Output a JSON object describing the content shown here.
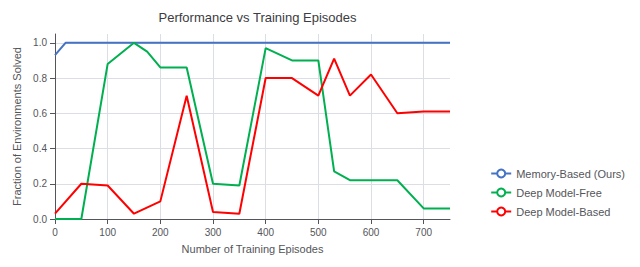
{
  "chart_data": {
    "type": "line",
    "title": "Performance vs Training Episodes",
    "xlabel": "Number of Training Episodes",
    "ylabel": "Fraction of Environments Solved",
    "xlim": [
      0,
      750
    ],
    "xticks": [
      0,
      100,
      200,
      300,
      400,
      500,
      600,
      700
    ],
    "ylim": [
      0.0,
      1.05
    ],
    "yticks": [
      {
        "value": 0.0,
        "label": "0.0"
      },
      0.2,
      0.4,
      0.6,
      0.8,
      {
        "value": 1.0,
        "label": "1.0"
      }
    ],
    "grid": true,
    "legend": "lower right",
    "series": [
      {
        "name": "Memory-Based (Ours)",
        "color": "#4472C4",
        "x": [
          0,
          20,
          750
        ],
        "values": [
          0.93,
          1.0,
          1.0
        ]
      },
      {
        "name": "Deep Model-Free",
        "color": "#00B050",
        "x": [
          0,
          50,
          100,
          150,
          175,
          200,
          250,
          300,
          350,
          400,
          450,
          500,
          530,
          560,
          600,
          650,
          700,
          750
        ],
        "values": [
          0.0,
          0.0,
          0.88,
          1.0,
          0.95,
          0.86,
          0.86,
          0.2,
          0.19,
          0.97,
          0.9,
          0.9,
          0.27,
          0.22,
          0.22,
          0.22,
          0.06,
          0.06
        ]
      },
      {
        "name": "Deep Model-Based",
        "color": "#FF0000",
        "x": [
          0,
          50,
          100,
          150,
          200,
          250,
          300,
          350,
          400,
          450,
          500,
          530,
          560,
          600,
          650,
          700,
          750
        ],
        "values": [
          0.03,
          0.2,
          0.19,
          0.03,
          0.1,
          0.7,
          0.04,
          0.03,
          0.8,
          0.8,
          0.7,
          0.91,
          0.7,
          0.82,
          0.6,
          0.61,
          0.61
        ]
      }
    ]
  }
}
